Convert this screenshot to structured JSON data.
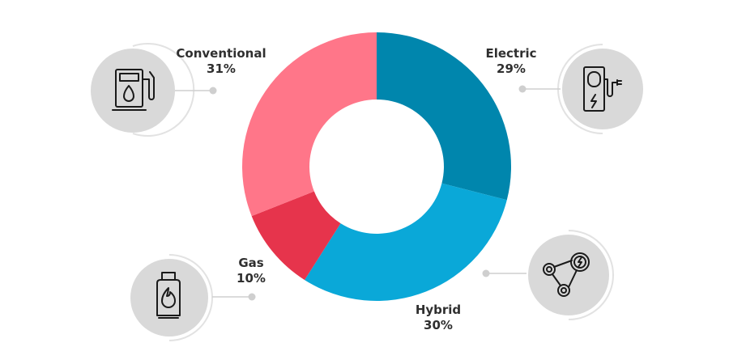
{
  "chart_data": {
    "type": "donut",
    "categories": [
      "Electric",
      "Hybrid",
      "Gas",
      "Conventional"
    ],
    "values": [
      29,
      30,
      10,
      31
    ],
    "colors": [
      "#0086ad",
      "#0aa8d8",
      "#e6344c",
      "#ff7689"
    ],
    "value_labels": [
      "29%",
      "30%",
      "10%",
      "31%"
    ]
  },
  "labels": {
    "conventional": {
      "name": "Conventional",
      "value": "31%"
    },
    "electric": {
      "name": "Electric",
      "value": "29%"
    },
    "gas": {
      "name": "Gas",
      "value": "10%"
    },
    "hybrid": {
      "name": "Hybrid",
      "value": "30%"
    }
  },
  "icons": {
    "conventional": "fuel-pump-icon",
    "electric": "ev-charger-icon",
    "gas": "gas-cylinder-icon",
    "hybrid": "hybrid-engine-icon"
  }
}
